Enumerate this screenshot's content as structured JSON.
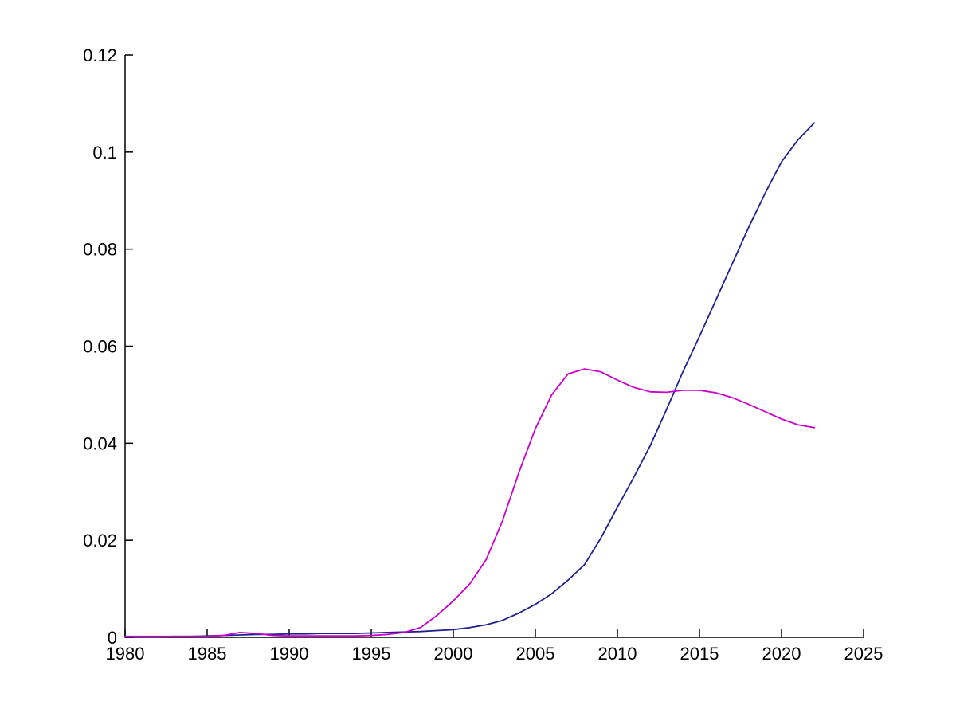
{
  "figure": {
    "background": "#ffffff",
    "axis_color": "#000000",
    "title": ""
  },
  "chart_data": {
    "type": "line",
    "title": "",
    "xlabel": "",
    "ylabel": "",
    "grid": false,
    "legend": "none",
    "xlim": [
      1980,
      2025
    ],
    "ylim": [
      0,
      0.12
    ],
    "x_ticks": [
      1980,
      1985,
      1990,
      1995,
      2000,
      2005,
      2010,
      2015,
      2020,
      2025
    ],
    "x_tick_labels": [
      "1980",
      "1985",
      "1990",
      "1995",
      "2000",
      "2005",
      "2010",
      "2015",
      "2020",
      "2025"
    ],
    "y_ticks": [
      0,
      0.02,
      0.04,
      0.06,
      0.08,
      0.1,
      0.12
    ],
    "y_tick_labels": [
      "0",
      "0.02",
      "0.04",
      "0.06",
      "0.08",
      "0.1",
      "0.12"
    ],
    "x": [
      1980,
      1981,
      1982,
      1983,
      1984,
      1985,
      1986,
      1987,
      1988,
      1989,
      1990,
      1991,
      1992,
      1993,
      1994,
      1995,
      1996,
      1997,
      1998,
      1999,
      2000,
      2001,
      2002,
      2003,
      2004,
      2005,
      2006,
      2007,
      2008,
      2009,
      2010,
      2011,
      2012,
      2013,
      2014,
      2015,
      2016,
      2017,
      2018,
      2019,
      2020,
      2021,
      2022
    ],
    "series": [
      {
        "name": "blue-line",
        "color": "#202090",
        "values": [
          0.0001,
          0.0001,
          0.0001,
          0.0002,
          0.0002,
          0.0003,
          0.0004,
          0.0005,
          0.0006,
          0.0006,
          0.0007,
          0.0007,
          0.0008,
          0.0008,
          0.0008,
          0.0009,
          0.001,
          0.0011,
          0.0012,
          0.0014,
          0.0016,
          0.002,
          0.0026,
          0.0035,
          0.005,
          0.0068,
          0.009,
          0.0118,
          0.015,
          0.0205,
          0.0268,
          0.033,
          0.0395,
          0.047,
          0.0548,
          0.062,
          0.0695,
          0.077,
          0.0845,
          0.0915,
          0.098,
          0.1025,
          0.106
        ]
      },
      {
        "name": "magenta-line",
        "color": "#cc00cc",
        "values": [
          0.0002,
          0.0002,
          0.0002,
          0.0002,
          0.0002,
          0.0002,
          0.0004,
          0.001,
          0.0008,
          0.0004,
          0.0003,
          0.0003,
          0.0003,
          0.0003,
          0.0003,
          0.0004,
          0.0006,
          0.001,
          0.002,
          0.0045,
          0.0075,
          0.011,
          0.016,
          0.024,
          0.034,
          0.043,
          0.05,
          0.0543,
          0.0553,
          0.0547,
          0.053,
          0.0515,
          0.0506,
          0.0505,
          0.0509,
          0.0509,
          0.0504,
          0.0494,
          0.048,
          0.0465,
          0.045,
          0.0438,
          0.0432
        ]
      }
    ]
  }
}
